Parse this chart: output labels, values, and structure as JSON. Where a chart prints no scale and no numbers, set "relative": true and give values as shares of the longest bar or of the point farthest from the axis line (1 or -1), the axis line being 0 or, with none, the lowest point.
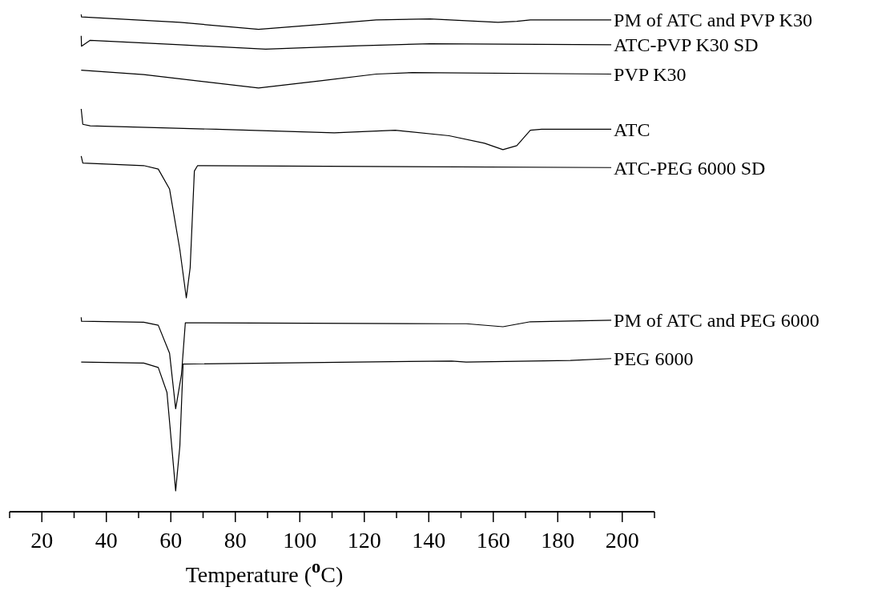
{
  "chart_data": {
    "type": "line",
    "relative": true,
    "xlabel": "Temperature ($^{o}$C)",
    "xlim": [
      10,
      210
    ],
    "xticks": [
      {
        "value": 10,
        "label": null
      },
      20,
      {
        "value": 30,
        "label": null
      },
      40,
      {
        "value": 50,
        "label": null
      },
      60,
      {
        "value": 70,
        "label": null
      },
      80,
      {
        "value": 90,
        "label": null
      },
      100,
      {
        "value": 110,
        "label": null
      },
      120,
      {
        "value": 130,
        "label": null
      },
      140,
      {
        "value": 150,
        "label": null
      },
      160,
      {
        "value": 170,
        "label": null
      },
      180,
      {
        "value": 190,
        "label": null
      },
      200,
      {
        "value": 210,
        "label": null
      }
    ],
    "grid": false,
    "legend": false,
    "marker": "none",
    "line_style": "solid",
    "series": [
      {
        "name": "PM of ATC and PVP K30",
        "color": "#000000",
        "x": [
          32.2,
          32.3,
          62.8,
          87.2,
          107,
          123.7,
          140.4,
          161.5,
          167.3,
          171.5,
          196.6
        ],
        "values": [
          1.0,
          0.995,
          0.984,
          0.97,
          0.98,
          0.989,
          0.991,
          0.984,
          0.986,
          0.989,
          0.989
        ]
      },
      {
        "name": "ATC-PVP K30 SD",
        "color": "#000000",
        "x": [
          32.2,
          32.3,
          35,
          62.8,
          89.4,
          118.3,
          140.4,
          196.6
        ],
        "values": [
          0.957,
          0.936,
          0.948,
          0.939,
          0.93,
          0.937,
          0.941,
          0.939
        ]
      },
      {
        "name": "PVP K30",
        "color": "#000000",
        "x": [
          32.2,
          51.6,
          87.2,
          107,
          123.7,
          134.9,
          196.6
        ],
        "values": [
          0.888,
          0.879,
          0.852,
          0.867,
          0.88,
          0.883,
          0.88
        ]
      },
      {
        "name": "ATC",
        "color": "#000000",
        "x": [
          32.2,
          32.7,
          35,
          74.1,
          110.7,
          129.6,
          146.3,
          157.3,
          163,
          167.3,
          171.5,
          175,
          196.6
        ],
        "values": [
          0.81,
          0.779,
          0.776,
          0.769,
          0.762,
          0.767,
          0.756,
          0.741,
          0.728,
          0.736,
          0.767,
          0.769,
          0.769
        ]
      },
      {
        "name": "ATC-PEG 6000 SD",
        "color": "#000000",
        "x": [
          32.2,
          32.7,
          51.6,
          56.1,
          59.6,
          62.8,
          64.8,
          66,
          67.3,
          68.3,
          196.6
        ],
        "values": [
          0.715,
          0.701,
          0.696,
          0.689,
          0.649,
          0.527,
          0.43,
          0.491,
          0.685,
          0.696,
          0.692
        ]
      },
      {
        "name": "PM of ATC and PEG 6000",
        "color": "#000000",
        "x": [
          32.2,
          32.3,
          51.6,
          56.1,
          59.6,
          61.5,
          63.3,
          64.5,
          147.1,
          151.6,
          163,
          171.5,
          196.6
        ],
        "values": [
          0.391,
          0.383,
          0.381,
          0.375,
          0.319,
          0.207,
          0.276,
          0.38,
          0.378,
          0.378,
          0.372,
          0.382,
          0.385
        ]
      },
      {
        "name": "PEG 6000",
        "color": "#000000",
        "x": [
          32.2,
          51.6,
          56.1,
          58.8,
          61.5,
          62.8,
          63.8,
          147.1,
          151.6,
          183.9,
          196.6
        ],
        "values": [
          0.301,
          0.299,
          0.29,
          0.24,
          0.042,
          0.132,
          0.297,
          0.303,
          0.301,
          0.304,
          0.308
        ]
      }
    ]
  }
}
